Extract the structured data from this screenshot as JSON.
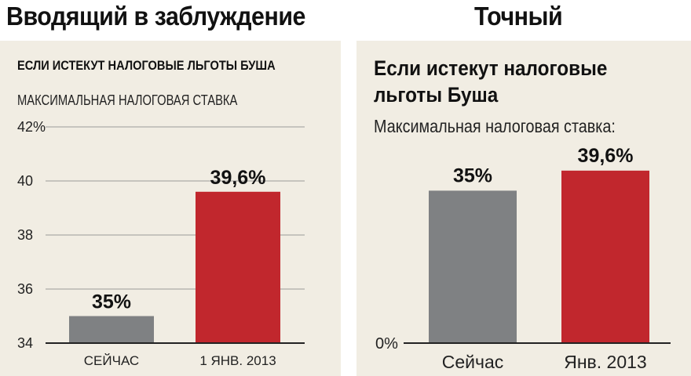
{
  "headings": {
    "left": "Вводящий в заблуждение",
    "right": "Точный"
  },
  "colors": {
    "panel_bg": "#f1ede3",
    "now_bar": "#7f8183",
    "future_bar": "#c1272d",
    "grid": "#9a9a9a",
    "axis": "#222222"
  },
  "chart_data": [
    {
      "type": "bar",
      "title": "ЕСЛИ ИСТЕКУТ НАЛОГОВЫЕ ЛЬГОТЫ БУША",
      "subtitle": "МАКСИМАЛЬНАЯ НАЛОГОВАЯ СТАВКА",
      "categories": [
        "СЕЙЧАС",
        "1 ЯНВ. 2013"
      ],
      "values": [
        35,
        39.6
      ],
      "data_labels": [
        "35%",
        "39,6%"
      ],
      "ylim": [
        34,
        42
      ],
      "yticks": [
        34,
        36,
        38,
        40,
        42
      ],
      "ytick_labels": [
        "34",
        "36",
        "38",
        "40",
        "42%"
      ],
      "grid": true,
      "xlabel": "",
      "ylabel": ""
    },
    {
      "type": "bar",
      "title": "Если истекут налоговые льготы Буша",
      "title_lines": [
        "Если истекут налоговые",
        "льготы Буша"
      ],
      "subtitle": "Максимальная налоговая ставка:",
      "categories": [
        "Сейчас",
        "Янв. 2013"
      ],
      "values": [
        35,
        39.6
      ],
      "data_labels": [
        "35%",
        "39,6%"
      ],
      "ylim": [
        0,
        50
      ],
      "yticks": [
        0
      ],
      "ytick_labels": [
        "0%"
      ],
      "grid": false,
      "xlabel": "",
      "ylabel": ""
    }
  ]
}
